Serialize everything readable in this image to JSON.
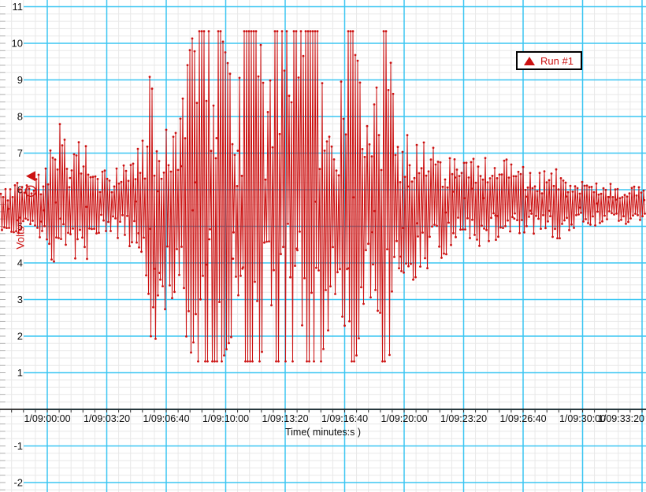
{
  "chart_data": {
    "type": "line",
    "title": "",
    "xlabel": "Time( minutes:s )",
    "ylabel": "Volts",
    "x_tick_interval_seconds": 200,
    "x_tick_labels": [
      "1/09:00:00",
      "1/09:03:20",
      "1/09:06:40",
      "1/09:10:00",
      "1/09:13:20",
      "1/09:16:40",
      "1/09:20:00",
      "1/09:23:20",
      "1/09:26:40",
      "1/09:30:00",
      "1/09:33:20"
    ],
    "y_tick_labels": [
      -2,
      -1,
      1,
      2,
      3,
      4,
      5,
      6,
      7,
      8,
      9,
      10,
      11
    ],
    "ylim": [
      -2.2,
      11.2
    ],
    "xlim_seconds": [
      -159,
      2008
    ],
    "grid": {
      "major_color": "#3bc6f2",
      "minor_color": "#e8e8e8",
      "edge_tick_color": "#adadad",
      "axis_color": "#000000"
    },
    "baseline_volts": 5.55,
    "clip_levels": {
      "high": 10.33,
      "low": 1.31
    },
    "series": [
      {
        "name": "Run #1",
        "color": "#cc1111",
        "marker": "filled-circle",
        "envelope_t_lo_hi": [
          [
            -159,
            4.9,
            6.1
          ],
          [
            -93,
            4.8,
            6.2
          ],
          [
            -40,
            4.6,
            6.5
          ],
          [
            -5,
            4.2,
            6.7
          ],
          [
            21,
            3.6,
            7.4
          ],
          [
            40,
            3.8,
            8.0
          ],
          [
            66,
            3.9,
            7.1
          ],
          [
            106,
            4.2,
            7.3
          ],
          [
            127,
            4.0,
            7.5
          ],
          [
            154,
            4.6,
            6.7
          ],
          [
            199,
            4.8,
            6.5
          ],
          [
            252,
            4.6,
            6.7
          ],
          [
            291,
            4.3,
            6.9
          ],
          [
            318,
            3.4,
            7.4
          ],
          [
            344,
            2.0,
            9.1
          ],
          [
            366,
            1.9,
            8.2
          ],
          [
            389,
            2.6,
            7.7
          ],
          [
            424,
            3.1,
            7.9
          ],
          [
            456,
            2.2,
            8.6
          ],
          [
            485,
            1.4,
            10.1
          ],
          [
            503,
            1.31,
            10.33
          ],
          [
            543,
            1.31,
            10.33
          ],
          [
            583,
            1.31,
            10.33
          ],
          [
            630,
            2.3,
            8.6
          ],
          [
            662,
            1.31,
            10.33
          ],
          [
            715,
            1.31,
            10.33
          ],
          [
            736,
            3.2,
            7.6
          ],
          [
            763,
            1.4,
            10.33
          ],
          [
            808,
            1.31,
            10.33
          ],
          [
            861,
            1.31,
            10.33
          ],
          [
            914,
            1.31,
            10.33
          ],
          [
            948,
            2.4,
            8.2
          ],
          [
            975,
            2.8,
            8.0
          ],
          [
            1007,
            1.31,
            10.33
          ],
          [
            1033,
            1.31,
            10.33
          ],
          [
            1060,
            2.9,
            8.3
          ],
          [
            1091,
            3.0,
            8.0
          ],
          [
            1113,
            1.31,
            10.33
          ],
          [
            1144,
            1.31,
            10.33
          ],
          [
            1166,
            2.6,
            8.6
          ],
          [
            1187,
            2.9,
            7.9
          ],
          [
            1213,
            3.3,
            7.7
          ],
          [
            1245,
            3.4,
            7.5
          ],
          [
            1277,
            3.8,
            7.6
          ],
          [
            1311,
            4.1,
            7.1
          ],
          [
            1351,
            4.2,
            7.0
          ],
          [
            1391,
            4.3,
            7.1
          ],
          [
            1430,
            4.4,
            6.9
          ],
          [
            1470,
            4.5,
            6.9
          ],
          [
            1515,
            4.6,
            6.8
          ],
          [
            1558,
            4.6,
            6.9
          ],
          [
            1589,
            4.7,
            6.7
          ],
          [
            1629,
            4.7,
            6.6
          ],
          [
            1674,
            4.7,
            6.5
          ],
          [
            1717,
            4.5,
            6.6
          ],
          [
            1754,
            4.8,
            6.4
          ],
          [
            1796,
            4.9,
            6.3
          ],
          [
            1841,
            5.0,
            6.2
          ],
          [
            1894,
            5.0,
            6.2
          ],
          [
            1947,
            5.0,
            6.1
          ],
          [
            2008,
            5.0,
            6.1
          ]
        ]
      }
    ],
    "legend_position": "top-right"
  },
  "legend": {
    "label": "Run #1"
  },
  "axis_marker": {
    "value_volts": 6.37
  },
  "point_highlight": {
    "t_seconds": -56,
    "value_volts": 5.96
  }
}
